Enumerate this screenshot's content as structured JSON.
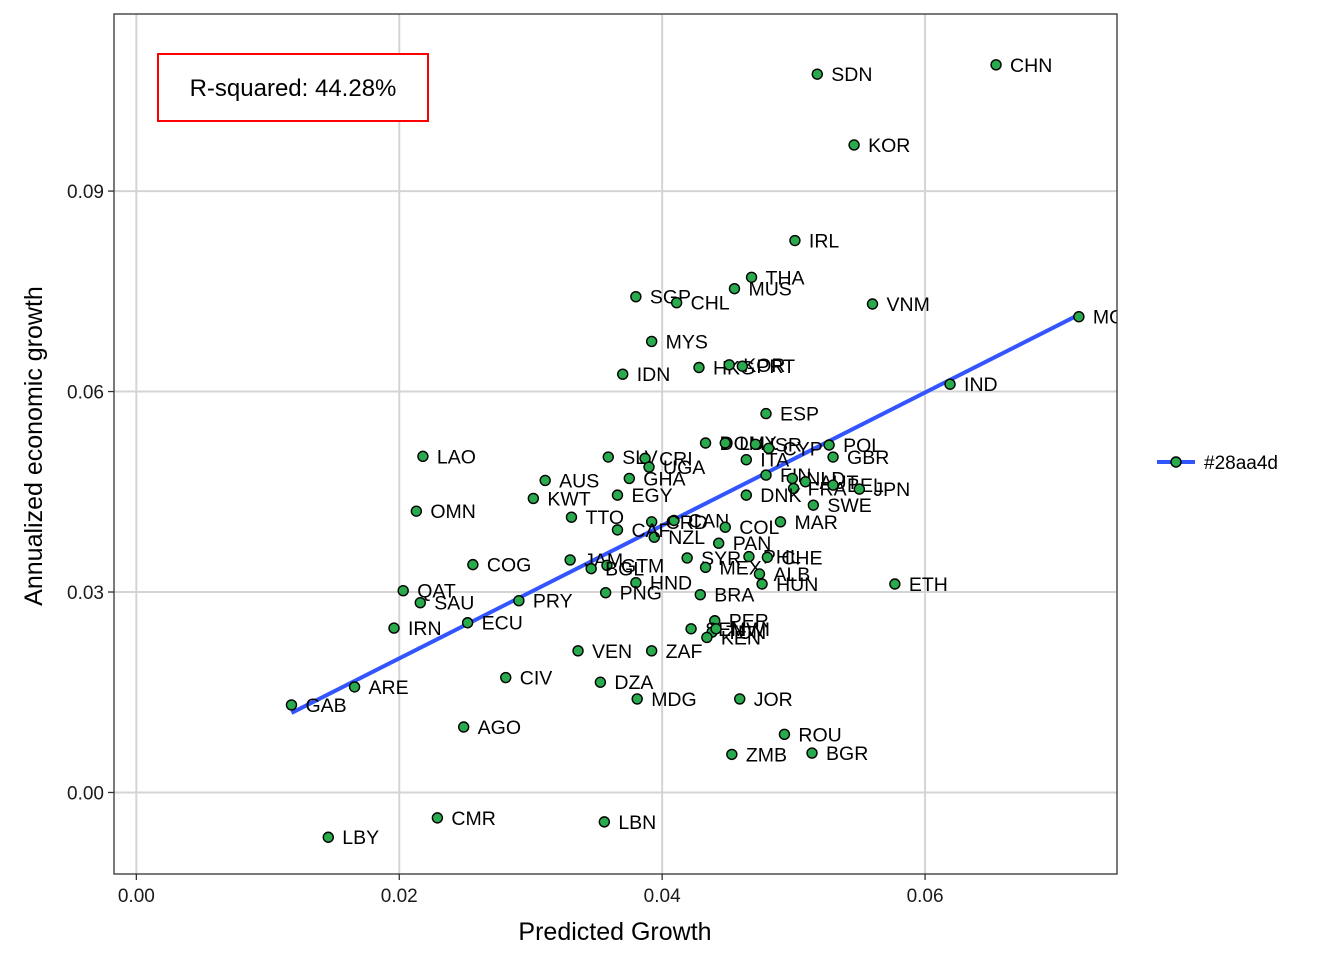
{
  "chart_data": {
    "type": "scatter",
    "xlabel": "Predicted Growth",
    "ylabel": "Annualized economic growth",
    "xlim": [
      -0.0017,
      0.0746
    ],
    "ylim": [
      -0.0122,
      0.1165
    ],
    "x_ticks": [
      0.0,
      0.02,
      0.04,
      0.06
    ],
    "y_ticks": [
      0.0,
      0.03,
      0.06,
      0.09
    ],
    "x_tick_labels": [
      "0.00",
      "0.02",
      "0.04",
      "0.06"
    ],
    "y_tick_labels": [
      "0.00",
      "0.03",
      "0.06",
      "0.09"
    ],
    "grid": true,
    "annotation": "R-squared: 44.28%",
    "point_color": "#28aa4d",
    "line_color": "#3355ff",
    "legend": {
      "position": "right",
      "entries": [
        "#28aa4d"
      ]
    },
    "trend_line": {
      "x": [
        0.0118,
        0.0717
      ],
      "y": [
        0.0119,
        0.0715
      ]
    },
    "points": [
      {
        "label": "CHN",
        "x": 0.0654,
        "y": 0.1089
      },
      {
        "label": "SDN",
        "x": 0.0518,
        "y": 0.1075
      },
      {
        "label": "KOR",
        "x": 0.0546,
        "y": 0.0969
      },
      {
        "label": "IRL",
        "x": 0.0501,
        "y": 0.0826
      },
      {
        "label": "THA",
        "x": 0.0468,
        "y": 0.0771
      },
      {
        "label": "MUS",
        "x": 0.0455,
        "y": 0.0754
      },
      {
        "label": "SGP",
        "x": 0.038,
        "y": 0.0742
      },
      {
        "label": "CHL",
        "x": 0.0411,
        "y": 0.0733
      },
      {
        "label": "VNM",
        "x": 0.056,
        "y": 0.0731
      },
      {
        "label": "MOZ",
        "x": 0.0717,
        "y": 0.0712
      },
      {
        "label": "MYS",
        "x": 0.0392,
        "y": 0.0675
      },
      {
        "label": "HKG",
        "x": 0.0428,
        "y": 0.0636
      },
      {
        "label": "IDN",
        "x": 0.037,
        "y": 0.0626
      },
      {
        "label": "KOR",
        "x": 0.0451,
        "y": 0.064
      },
      {
        "label": "PRT",
        "x": 0.0461,
        "y": 0.0638
      },
      {
        "label": "IND",
        "x": 0.0619,
        "y": 0.0611
      },
      {
        "label": "ESP",
        "x": 0.0479,
        "y": 0.0567
      },
      {
        "label": "DOM",
        "x": 0.0433,
        "y": 0.0523
      },
      {
        "label": "LUX",
        "x": 0.0448,
        "y": 0.0523
      },
      {
        "label": "ISR",
        "x": 0.0471,
        "y": 0.0521
      },
      {
        "label": "POL",
        "x": 0.0527,
        "y": 0.052
      },
      {
        "label": "CYP",
        "x": 0.0481,
        "y": 0.0515
      },
      {
        "label": "LAO",
        "x": 0.0218,
        "y": 0.0503
      },
      {
        "label": "SLV",
        "x": 0.0359,
        "y": 0.0502
      },
      {
        "label": "CRI",
        "x": 0.0387,
        "y": 0.05
      },
      {
        "label": "GBR",
        "x": 0.053,
        "y": 0.0502
      },
      {
        "label": "UGA",
        "x": 0.039,
        "y": 0.0487
      },
      {
        "label": "ITA",
        "x": 0.0464,
        "y": 0.0498
      },
      {
        "label": "AUS",
        "x": 0.0311,
        "y": 0.0467
      },
      {
        "label": "GHA",
        "x": 0.0375,
        "y": 0.047
      },
      {
        "label": "FIN",
        "x": 0.0479,
        "y": 0.0475
      },
      {
        "label": "NLD",
        "x": 0.0499,
        "y": 0.047
      },
      {
        "label": "AUT",
        "x": 0.0509,
        "y": 0.0465
      },
      {
        "label": "FRA",
        "x": 0.05,
        "y": 0.0455
      },
      {
        "label": "BEL",
        "x": 0.053,
        "y": 0.046
      },
      {
        "label": "JPN",
        "x": 0.055,
        "y": 0.0454
      },
      {
        "label": "KWT",
        "x": 0.0302,
        "y": 0.044
      },
      {
        "label": "EGY",
        "x": 0.0366,
        "y": 0.0445
      },
      {
        "label": "DNK",
        "x": 0.0464,
        "y": 0.0445
      },
      {
        "label": "SWE",
        "x": 0.0515,
        "y": 0.043
      },
      {
        "label": "OMN",
        "x": 0.0213,
        "y": 0.0421
      },
      {
        "label": "TTO",
        "x": 0.0331,
        "y": 0.0412
      },
      {
        "label": "CAN",
        "x": 0.0409,
        "y": 0.0407
      },
      {
        "label": "MAR",
        "x": 0.049,
        "y": 0.0405
      },
      {
        "label": "CRD",
        "x": 0.0392,
        "y": 0.0405
      },
      {
        "label": "COL",
        "x": 0.0448,
        "y": 0.0397
      },
      {
        "label": "NZL",
        "x": 0.0394,
        "y": 0.0382
      },
      {
        "label": "PAN",
        "x": 0.0443,
        "y": 0.0373
      },
      {
        "label": "CAF",
        "x": 0.0366,
        "y": 0.0393
      },
      {
        "label": "COG",
        "x": 0.0256,
        "y": 0.0341
      },
      {
        "label": "JAM",
        "x": 0.033,
        "y": 0.0348
      },
      {
        "label": "GTM",
        "x": 0.0358,
        "y": 0.034
      },
      {
        "label": "SYR",
        "x": 0.0419,
        "y": 0.0351
      },
      {
        "label": "PHL",
        "x": 0.0466,
        "y": 0.0353
      },
      {
        "label": "CHE",
        "x": 0.048,
        "y": 0.0352
      },
      {
        "label": "BGL",
        "x": 0.0346,
        "y": 0.0335
      },
      {
        "label": "MEX",
        "x": 0.0433,
        "y": 0.0337
      },
      {
        "label": "ALB",
        "x": 0.0474,
        "y": 0.0327
      },
      {
        "label": "HND",
        "x": 0.038,
        "y": 0.0314
      },
      {
        "label": "HUN",
        "x": 0.0476,
        "y": 0.0312
      },
      {
        "label": "ETH",
        "x": 0.0577,
        "y": 0.0312
      },
      {
        "label": "QAT",
        "x": 0.0203,
        "y": 0.0302
      },
      {
        "label": "PNG",
        "x": 0.0357,
        "y": 0.0299
      },
      {
        "label": "BRA",
        "x": 0.0429,
        "y": 0.0296
      },
      {
        "label": "SAU",
        "x": 0.0216,
        "y": 0.0284
      },
      {
        "label": "PRY",
        "x": 0.0291,
        "y": 0.0287
      },
      {
        "label": "ECU",
        "x": 0.0252,
        "y": 0.0254
      },
      {
        "label": "IRN",
        "x": 0.0196,
        "y": 0.0246
      },
      {
        "label": "PER",
        "x": 0.044,
        "y": 0.0257
      },
      {
        "label": "SEN",
        "x": 0.0422,
        "y": 0.0245
      },
      {
        "label": "TUN",
        "x": 0.0438,
        "y": 0.024
      },
      {
        "label": "MWI",
        "x": 0.0441,
        "y": 0.0245
      },
      {
        "label": "KEN",
        "x": 0.0434,
        "y": 0.0232
      },
      {
        "label": "VEN",
        "x": 0.0336,
        "y": 0.0212
      },
      {
        "label": "ZAF",
        "x": 0.0392,
        "y": 0.0212
      },
      {
        "label": "CIV",
        "x": 0.0281,
        "y": 0.0172
      },
      {
        "label": "DZA",
        "x": 0.0353,
        "y": 0.0165
      },
      {
        "label": "ARE",
        "x": 0.0166,
        "y": 0.0158
      },
      {
        "label": "MDG",
        "x": 0.0381,
        "y": 0.014
      },
      {
        "label": "JOR",
        "x": 0.0459,
        "y": 0.014
      },
      {
        "label": "GAB",
        "x": 0.0118,
        "y": 0.0131
      },
      {
        "label": "AGO",
        "x": 0.0249,
        "y": 0.0098
      },
      {
        "label": "ROU",
        "x": 0.0493,
        "y": 0.0087
      },
      {
        "label": "ZMB",
        "x": 0.0453,
        "y": 0.0057
      },
      {
        "label": "BGR",
        "x": 0.0514,
        "y": 0.0059
      },
      {
        "label": "CMR",
        "x": 0.0229,
        "y": -0.0038
      },
      {
        "label": "LBN",
        "x": 0.0356,
        "y": -0.0044
      },
      {
        "label": "LBY",
        "x": 0.0146,
        "y": -0.0067
      }
    ]
  }
}
